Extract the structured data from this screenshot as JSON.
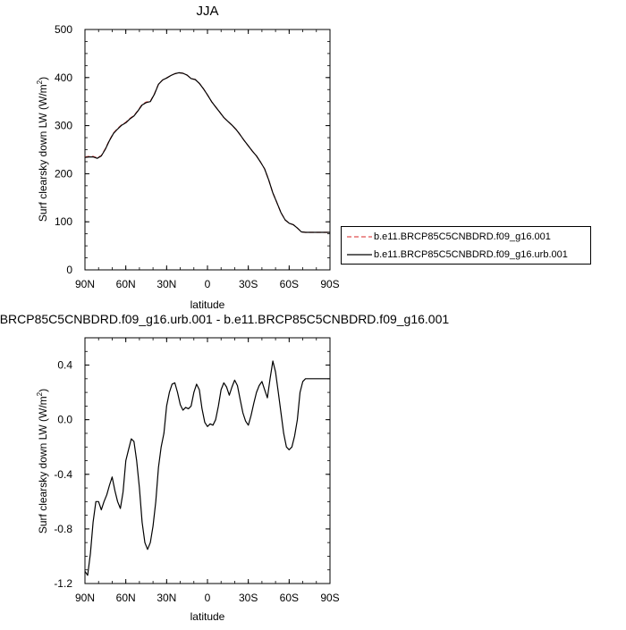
{
  "chart_data": [
    {
      "type": "line",
      "title": "JJA",
      "xlabel": "latitude",
      "ylabel": "Surf clearsky down LW (W/m",
      "ylabel_sup": "2",
      "ylabel_tail": ")",
      "xlim": [
        90,
        -90
      ],
      "ylim": [
        0,
        500
      ],
      "xticks": [
        90,
        60,
        30,
        0,
        -30,
        -60,
        -90
      ],
      "xtick_labels": [
        "90N",
        "60N",
        "30N",
        "0",
        "30S",
        "60S",
        "90S"
      ],
      "yticks": [
        0,
        100,
        200,
        300,
        400,
        500
      ],
      "ytick_labels": [
        "0",
        "100",
        "200",
        "300",
        "400",
        "500"
      ],
      "legend_placement": "right",
      "series": [
        {
          "name": "b.e11.BRCP85C5CNBDRD.f09_g16.001",
          "color": "#e05050",
          "dash": "dashed",
          "x": [
            90,
            87,
            84,
            81,
            78,
            75,
            72,
            69,
            66,
            63,
            60,
            57,
            54,
            51,
            48,
            45,
            42,
            39,
            36,
            33,
            30,
            27,
            24,
            21,
            18,
            15,
            12,
            9,
            6,
            3,
            0,
            -3,
            -6,
            -9,
            -12,
            -15,
            -18,
            -21,
            -24,
            -27,
            -30,
            -33,
            -36,
            -39,
            -42,
            -45,
            -48,
            -51,
            -54,
            -57,
            -60,
            -63,
            -66,
            -69,
            -72,
            -75,
            -78,
            -81,
            -84,
            -87,
            -90
          ],
          "y": [
            235,
            236,
            236,
            233,
            238,
            252,
            270,
            285,
            294,
            302,
            307,
            315,
            321,
            332,
            344,
            349,
            351,
            366,
            386,
            395,
            399,
            404,
            408,
            410,
            409,
            405,
            398,
            396,
            388,
            377,
            364,
            350,
            339,
            328,
            317,
            309,
            301,
            292,
            281,
            269,
            258,
            247,
            237,
            224,
            210,
            187,
            160,
            140,
            119,
            104,
            97,
            94,
            87,
            79,
            78,
            78,
            78,
            78,
            78,
            78,
            78
          ]
        },
        {
          "name": "b.e11.BRCP85C5CNBDRD.f09_g16.urb.001",
          "color": "#000000",
          "dash": "solid",
          "x": [
            90,
            87,
            84,
            81,
            78,
            75,
            72,
            69,
            66,
            63,
            60,
            57,
            54,
            51,
            48,
            45,
            42,
            39,
            36,
            33,
            30,
            27,
            24,
            21,
            18,
            15,
            12,
            9,
            6,
            3,
            0,
            -3,
            -6,
            -9,
            -12,
            -15,
            -18,
            -21,
            -24,
            -27,
            -30,
            -33,
            -36,
            -39,
            -42,
            -45,
            -48,
            -51,
            -54,
            -57,
            -60,
            -63,
            -66,
            -69,
            -72,
            -75,
            -78,
            -81,
            -84,
            -87,
            -90
          ],
          "y": [
            234,
            235,
            235,
            232,
            237,
            251,
            269,
            284,
            293,
            301,
            306,
            314,
            320,
            331,
            343,
            348,
            350,
            365,
            386,
            395,
            399,
            404,
            408,
            410,
            409,
            405,
            398,
            396,
            388,
            377,
            364,
            350,
            339,
            328,
            317,
            309,
            301,
            292,
            281,
            269,
            258,
            247,
            237,
            224,
            210,
            187,
            160,
            140,
            119,
            104,
            97,
            94,
            87,
            79,
            78,
            78,
            78,
            78,
            78,
            78,
            78
          ]
        }
      ]
    },
    {
      "type": "line",
      "title": "b.e11.BRCP85C5CNBDRD.f09_g16.urb.001 - b.e11.BRCP85C5CNBDRD.f09_g16.001",
      "xlabel": "latitude",
      "ylabel": "Surf clearsky down LW (W/m",
      "ylabel_sup": "2",
      "ylabel_tail": ")",
      "xlim": [
        90,
        -90
      ],
      "ylim": [
        -1.2,
        0.6
      ],
      "xticks": [
        90,
        60,
        30,
        0,
        -30,
        -60,
        -90
      ],
      "xtick_labels": [
        "90N",
        "60N",
        "30N",
        "0",
        "30S",
        "60S",
        "90S"
      ],
      "yticks": [
        -1.2,
        -0.8,
        -0.4,
        0.0,
        0.4
      ],
      "ytick_labels": [
        "-1.2",
        "-0.8",
        "-0.4",
        "0.0",
        "0.4"
      ],
      "series": [
        {
          "color": "#000000",
          "dash": "solid",
          "x": [
            90,
            88,
            86,
            84,
            82,
            80,
            78,
            76,
            74,
            72,
            70,
            68,
            66,
            64,
            62,
            60,
            58,
            56,
            54,
            52,
            50,
            48,
            46,
            44,
            42,
            40,
            38,
            36,
            34,
            32,
            30,
            28,
            26,
            24,
            22,
            20,
            18,
            16,
            14,
            12,
            10,
            8,
            6,
            4,
            2,
            0,
            -2,
            -4,
            -6,
            -8,
            -10,
            -12,
            -14,
            -16,
            -18,
            -20,
            -22,
            -24,
            -26,
            -28,
            -30,
            -32,
            -34,
            -36,
            -38,
            -40,
            -42,
            -44,
            -46,
            -48,
            -50,
            -52,
            -54,
            -56,
            -58,
            -60,
            -62,
            -64,
            -66,
            -68,
            -70,
            -72,
            -74,
            -76,
            -78,
            -80,
            -82,
            -84,
            -86,
            -88,
            -90
          ],
          "y": [
            -1.11,
            -1.14,
            -0.98,
            -0.75,
            -0.6,
            -0.6,
            -0.66,
            -0.6,
            -0.55,
            -0.48,
            -0.42,
            -0.52,
            -0.6,
            -0.65,
            -0.53,
            -0.3,
            -0.22,
            -0.14,
            -0.16,
            -0.3,
            -0.5,
            -0.75,
            -0.9,
            -0.95,
            -0.9,
            -0.78,
            -0.6,
            -0.35,
            -0.2,
            -0.1,
            0.1,
            0.2,
            0.26,
            0.27,
            0.2,
            0.11,
            0.07,
            0.09,
            0.08,
            0.1,
            0.2,
            0.26,
            0.22,
            0.08,
            -0.02,
            -0.05,
            -0.03,
            -0.04,
            0.0,
            0.1,
            0.22,
            0.27,
            0.24,
            0.18,
            0.24,
            0.29,
            0.25,
            0.15,
            0.05,
            -0.01,
            -0.04,
            0.03,
            0.12,
            0.2,
            0.25,
            0.28,
            0.22,
            0.16,
            0.3,
            0.43,
            0.35,
            0.2,
            0.05,
            -0.1,
            -0.2,
            -0.22,
            -0.2,
            -0.12,
            0.0,
            0.2,
            0.28,
            0.3,
            0.3,
            0.3,
            0.3,
            0.3,
            0.3,
            0.3,
            0.3,
            0.3,
            0.3
          ]
        }
      ]
    }
  ]
}
